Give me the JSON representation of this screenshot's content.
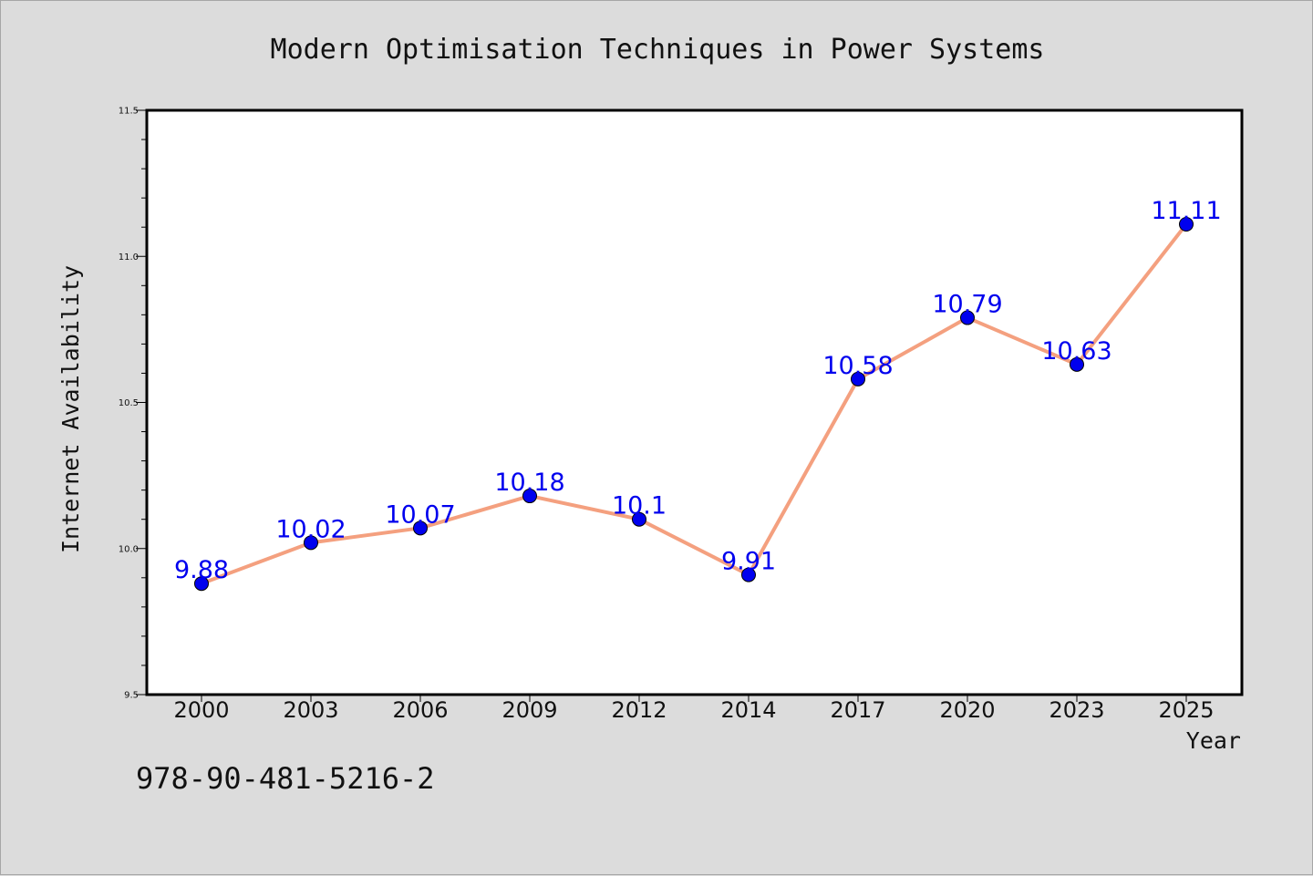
{
  "chart_data": {
    "type": "line",
    "title": "Modern Optimisation Techniques in Power Systems",
    "xlabel": "Year",
    "ylabel": "Internet Availability",
    "categories": [
      "2000",
      "2003",
      "2006",
      "2009",
      "2012",
      "2014",
      "2017",
      "2020",
      "2023",
      "2025"
    ],
    "series": [
      {
        "values": [
          9.88,
          10.02,
          10.07,
          10.18,
          10.1,
          9.91,
          10.58,
          10.79,
          10.63,
          11.11
        ],
        "data_labels": [
          "9.88",
          "10.02",
          "10.07",
          "10.18",
          "10.1",
          "9.91",
          "10.58",
          "10.79",
          "10.63",
          "11.11"
        ]
      }
    ],
    "ylim": [
      9.5,
      11.5
    ],
    "y_major_ticks": [
      9.5,
      10.0,
      10.5,
      11.0,
      11.5
    ],
    "y_tick_labels": [
      "9.5",
      "10.0",
      "10.5",
      "11.0",
      "11.5"
    ],
    "y_minor_step": 0.1,
    "grid": false,
    "line_color": "#f4a07f",
    "marker_color": "#0000ee",
    "label_color": "#0000ee",
    "annotation": "978-90-481-5216-2"
  }
}
